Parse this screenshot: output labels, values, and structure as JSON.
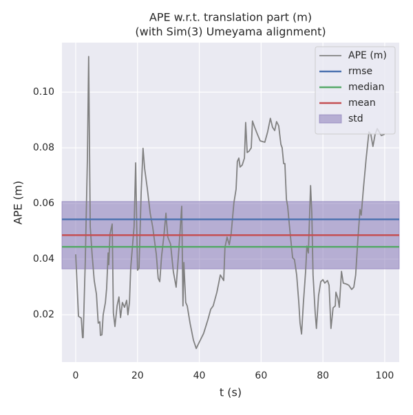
{
  "chart_data": {
    "type": "line",
    "title": "APE w.r.t. translation part (m)",
    "subtitle": "(with Sim(3) Umeyama alignment)",
    "xlabel": "t (s)",
    "ylabel": "APE (m)",
    "xlim": [
      -4.45,
      104.7
    ],
    "ylim": [
      0.003,
      0.1178
    ],
    "xticks": [
      0,
      20,
      40,
      60,
      80,
      100
    ],
    "yticks": [
      0.02,
      0.04,
      0.06,
      0.08,
      {
        "value": 0.1,
        "label": "0.10"
      }
    ],
    "grid": true,
    "legend": "upper right",
    "series": [
      {
        "name": "APE (m)",
        "color": "#808080",
        "x": [
          0,
          0.9,
          1.8,
          2.2,
          2.4,
          3.1,
          3.8,
          4.2,
          4.7,
          5.3,
          6.0,
          6.7,
          7.3,
          7.8,
          8.0,
          8.5,
          8.9,
          9.6,
          10.0,
          10.5,
          10.7,
          11.1,
          11.8,
          12.2,
          12.7,
          13.4,
          14.0,
          14.5,
          15.1,
          15.8,
          16.5,
          16.9,
          17.4,
          17.8,
          18.5,
          18.9,
          19.4,
          19.6,
          20.0,
          20.5,
          21.2,
          21.8,
          22.3,
          23.2,
          24.1,
          24.9,
          26.1,
          26.7,
          27.2,
          27.8,
          28.5,
          29.2,
          29.4,
          29.8,
          30.7,
          31.6,
          32.5,
          33.4,
          34.3,
          34.7,
          35.0,
          35.6,
          36.1,
          37.0,
          38.1,
          39.0,
          40.1,
          41.4,
          42.8,
          43.7,
          44.5,
          45.7,
          46.8,
          47.9,
          48.3,
          49.0,
          49.7,
          50.3,
          51.2,
          51.9,
          52.3,
          52.8,
          53.2,
          53.9,
          54.6,
          55.0,
          55.5,
          56.1,
          56.8,
          57.2,
          57.9,
          58.8,
          59.7,
          61.2,
          62.1,
          63.0,
          63.7,
          64.4,
          65.0,
          65.7,
          66.4,
          66.8,
          67.3,
          67.7,
          68.2,
          68.6,
          69.3,
          70.2,
          70.8,
          71.5,
          72.2,
          72.6,
          73.1,
          73.7,
          74.4,
          74.8,
          75.3,
          76.0,
          76.4,
          76.8,
          77.5,
          77.9,
          78.6,
          79.3,
          80.0,
          80.6,
          81.5,
          82.0,
          82.6,
          83.3,
          84.0,
          84.2,
          84.9,
          85.3,
          86.0,
          86.6,
          87.5,
          88.4,
          89.3,
          90.0,
          90.6,
          91.3,
          92.0,
          92.4,
          93.1,
          94.0,
          94.9,
          95.5,
          96.2,
          96.9,
          97.6,
          98.2,
          98.9,
          100.0
        ],
        "values": [
          0.0417,
          0.0195,
          0.0188,
          0.0118,
          0.0118,
          0.0393,
          0.0763,
          0.1128,
          0.0516,
          0.0417,
          0.0323,
          0.0274,
          0.017,
          0.0175,
          0.0126,
          0.0128,
          0.02,
          0.0244,
          0.0294,
          0.0422,
          0.038,
          0.0491,
          0.0526,
          0.0207,
          0.0158,
          0.0232,
          0.0264,
          0.019,
          0.0244,
          0.0227,
          0.0252,
          0.02,
          0.0244,
          0.0368,
          0.0462,
          0.0516,
          0.0746,
          0.0615,
          0.036,
          0.0368,
          0.064,
          0.0798,
          0.0726,
          0.0652,
          0.0565,
          0.0516,
          0.0417,
          0.0331,
          0.0319,
          0.0412,
          0.0479,
          0.0565,
          0.0533,
          0.0479,
          0.0454,
          0.0356,
          0.0299,
          0.0437,
          0.059,
          0.0232,
          0.0388,
          0.0244,
          0.0232,
          0.017,
          0.0109,
          0.0079,
          0.0104,
          0.0133,
          0.0183,
          0.022,
          0.0232,
          0.0281,
          0.0343,
          0.0323,
          0.0442,
          0.0479,
          0.0452,
          0.0491,
          0.0602,
          0.0652,
          0.0751,
          0.0763,
          0.0731,
          0.0738,
          0.0763,
          0.0891,
          0.0783,
          0.0788,
          0.08,
          0.0896,
          0.0874,
          0.0849,
          0.0825,
          0.082,
          0.0857,
          0.0906,
          0.0874,
          0.0862,
          0.0894,
          0.0879,
          0.0812,
          0.08,
          0.0743,
          0.0743,
          0.0615,
          0.059,
          0.0504,
          0.0405,
          0.0398,
          0.0343,
          0.0244,
          0.017,
          0.0131,
          0.0244,
          0.0356,
          0.0447,
          0.0422,
          0.0664,
          0.0565,
          0.0343,
          0.0207,
          0.0151,
          0.0269,
          0.0319,
          0.0326,
          0.0314,
          0.0323,
          0.0306,
          0.0151,
          0.0225,
          0.0232,
          0.0281,
          0.0257,
          0.0227,
          0.0356,
          0.0314,
          0.0311,
          0.0306,
          0.0291,
          0.0299,
          0.0343,
          0.0467,
          0.0578,
          0.0558,
          0.0652,
          0.0763,
          0.0857,
          0.0849,
          0.0805,
          0.0849,
          0.0869,
          0.0857,
          0.0844,
          0.0849
        ]
      }
    ],
    "reference_lines": [
      {
        "name": "rmse",
        "color": "#4c72b0",
        "value": 0.0543
      },
      {
        "name": "median",
        "color": "#55a868",
        "value": 0.0444
      },
      {
        "name": "mean",
        "color": "#c44e52",
        "value": 0.0486
      }
    ],
    "std": {
      "name": "std",
      "color": "#8172b3",
      "lower": 0.0365,
      "upper": 0.0607
    }
  }
}
